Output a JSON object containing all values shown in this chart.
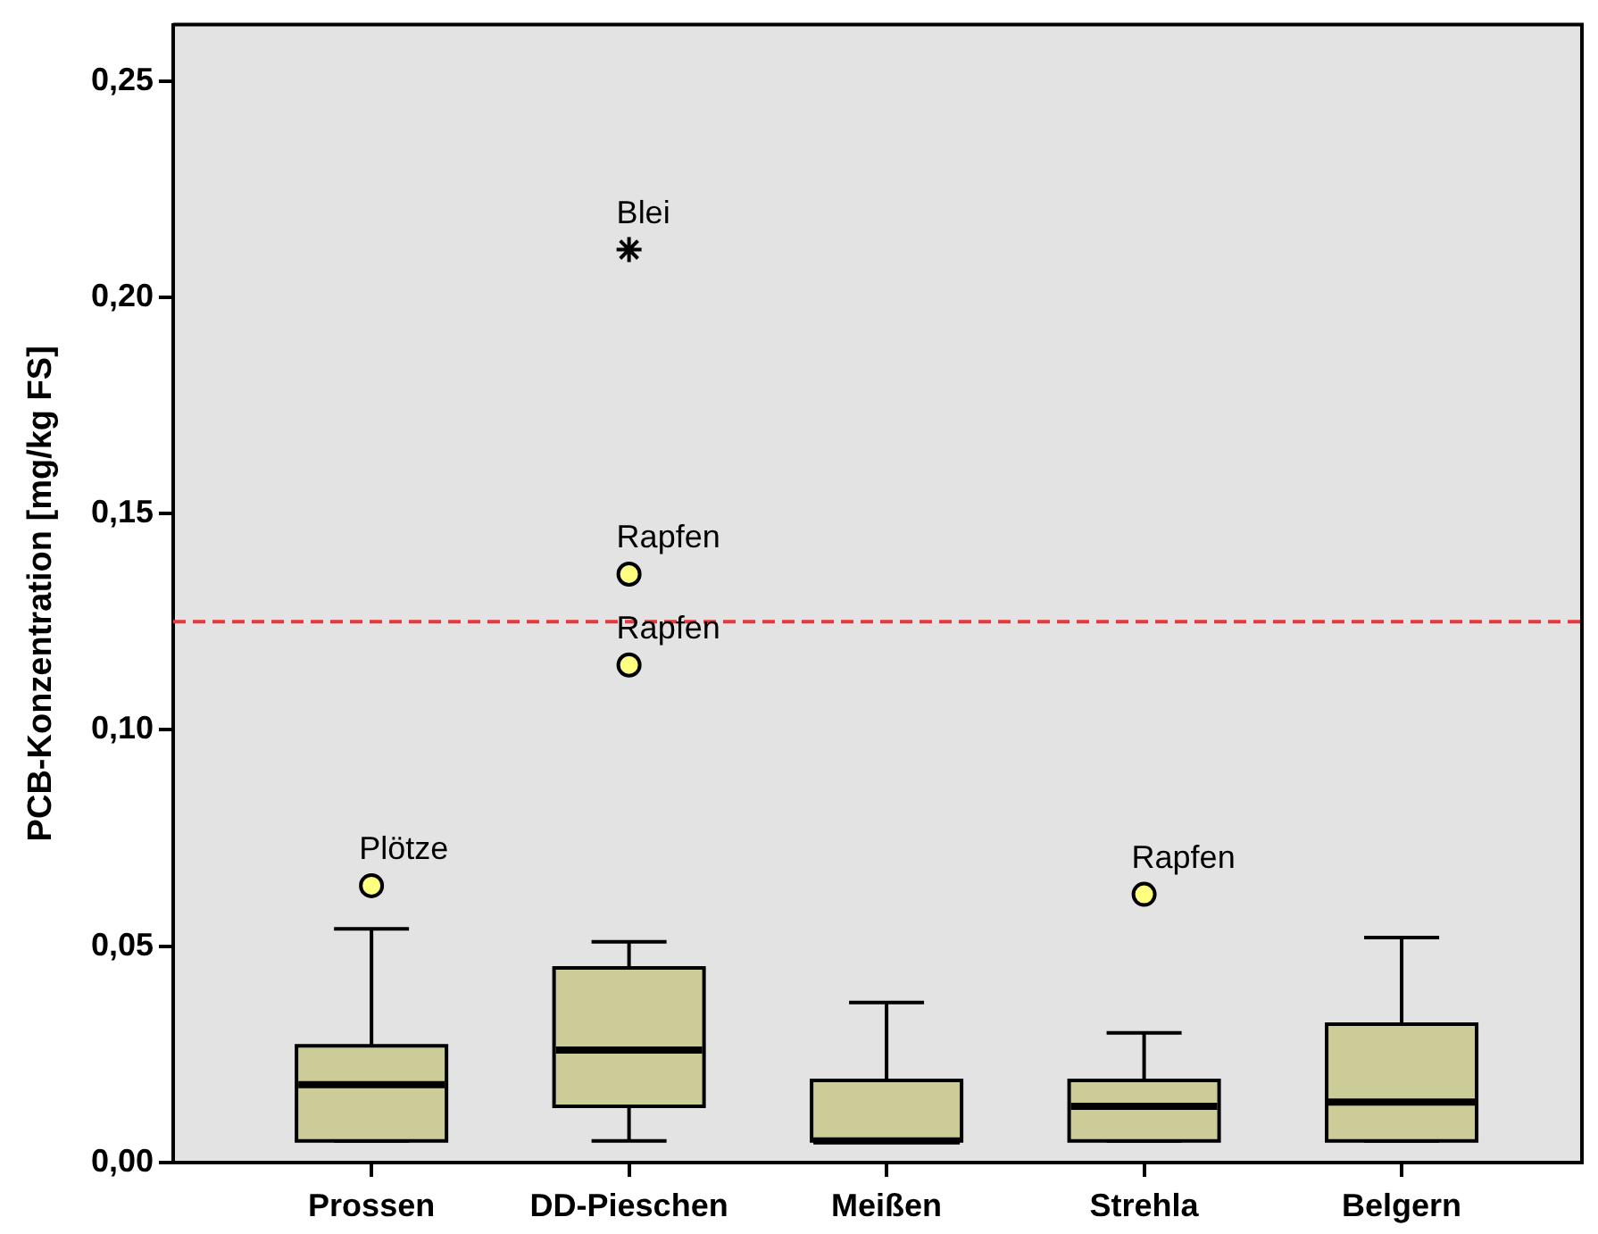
{
  "chart_data": {
    "type": "box",
    "ylabel": "PCB-Konzentration [mg/kg FS]",
    "categories": [
      "Prossen",
      "DD-Pieschen",
      "Meißen",
      "Strehla",
      "Belgern"
    ],
    "series": [
      {
        "type": "box",
        "color": "#cccc99",
        "boxes": [
          {
            "low": 0.005,
            "q1": 0.005,
            "median": 0.018,
            "q3": 0.027,
            "high": 0.054
          },
          {
            "low": 0.005,
            "q1": 0.013,
            "median": 0.026,
            "q3": 0.045,
            "high": 0.051
          },
          {
            "low": 0.005,
            "q1": 0.005,
            "median": 0.005,
            "q3": 0.019,
            "high": 0.037
          },
          {
            "low": 0.005,
            "q1": 0.005,
            "median": 0.013,
            "q3": 0.019,
            "high": 0.03
          },
          {
            "low": 0.005,
            "q1": 0.005,
            "median": 0.014,
            "q3": 0.032,
            "high": 0.052
          }
        ]
      },
      {
        "type": "scatter",
        "marker": "circle",
        "color": "#ffff80",
        "x": [
          "Prossen",
          "DD-Pieschen",
          "DD-Pieschen",
          "Strehla"
        ],
        "values": [
          0.064,
          0.136,
          0.115,
          0.062
        ]
      },
      {
        "type": "scatter",
        "marker": "cross",
        "color": "#000000",
        "x": [
          "DD-Pieschen"
        ],
        "values": [
          0.211
        ]
      }
    ],
    "ylim": [
      0,
      0.263
    ],
    "yticks": [
      {
        "value": 0,
        "label": "0,00"
      },
      {
        "value": 0.05,
        "label": "0,05"
      },
      {
        "value": 0.1,
        "label": "0,10"
      },
      {
        "value": 0.15,
        "label": "0,15"
      },
      {
        "value": 0.2,
        "label": "0,20"
      },
      {
        "value": 0.25,
        "label": "0,25"
      }
    ],
    "ref_lines": [
      {
        "axis": "y",
        "value": 0.125,
        "color": "#e8383d",
        "line_style": "dashed"
      }
    ],
    "annotations": [
      {
        "text": "Plötze",
        "x": "Prossen",
        "y": 0.064
      },
      {
        "text": "Rapfen",
        "x": "DD-Pieschen",
        "y": 0.136
      },
      {
        "text": "Rapfen",
        "x": "DD-Pieschen",
        "y": 0.115
      },
      {
        "text": "Blei",
        "x": "DD-Pieschen",
        "y": 0.211
      },
      {
        "text": "Rapfen",
        "x": "Strehla",
        "y": 0.062
      }
    ],
    "legend": false
  }
}
